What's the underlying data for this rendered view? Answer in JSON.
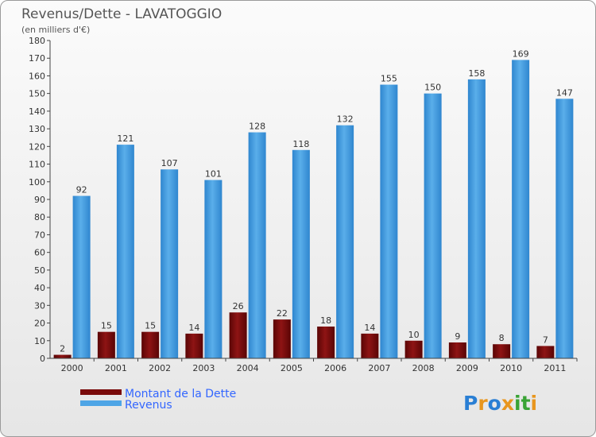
{
  "chart_data": {
    "type": "bar",
    "title": "Revenus/Dette - LAVATOGGIO",
    "subtitle": "(en milliers d'€)",
    "categories": [
      "2000",
      "2001",
      "2002",
      "2003",
      "2004",
      "2005",
      "2006",
      "2007",
      "2008",
      "2009",
      "2010",
      "2011"
    ],
    "series": [
      {
        "name": "Montant de la Dette",
        "color": "#7a0a0a",
        "values": [
          2,
          15,
          15,
          14,
          26,
          22,
          18,
          14,
          10,
          9,
          8,
          7
        ]
      },
      {
        "name": "Revenus",
        "color": "#4ea5e6",
        "values": [
          92,
          121,
          107,
          101,
          128,
          118,
          132,
          155,
          150,
          158,
          169,
          147
        ]
      }
    ],
    "ylim": [
      0,
      180
    ],
    "ytick_step": 10,
    "grid": false,
    "legend": "bottom-left"
  },
  "logo": {
    "text": "Proxiti"
  }
}
